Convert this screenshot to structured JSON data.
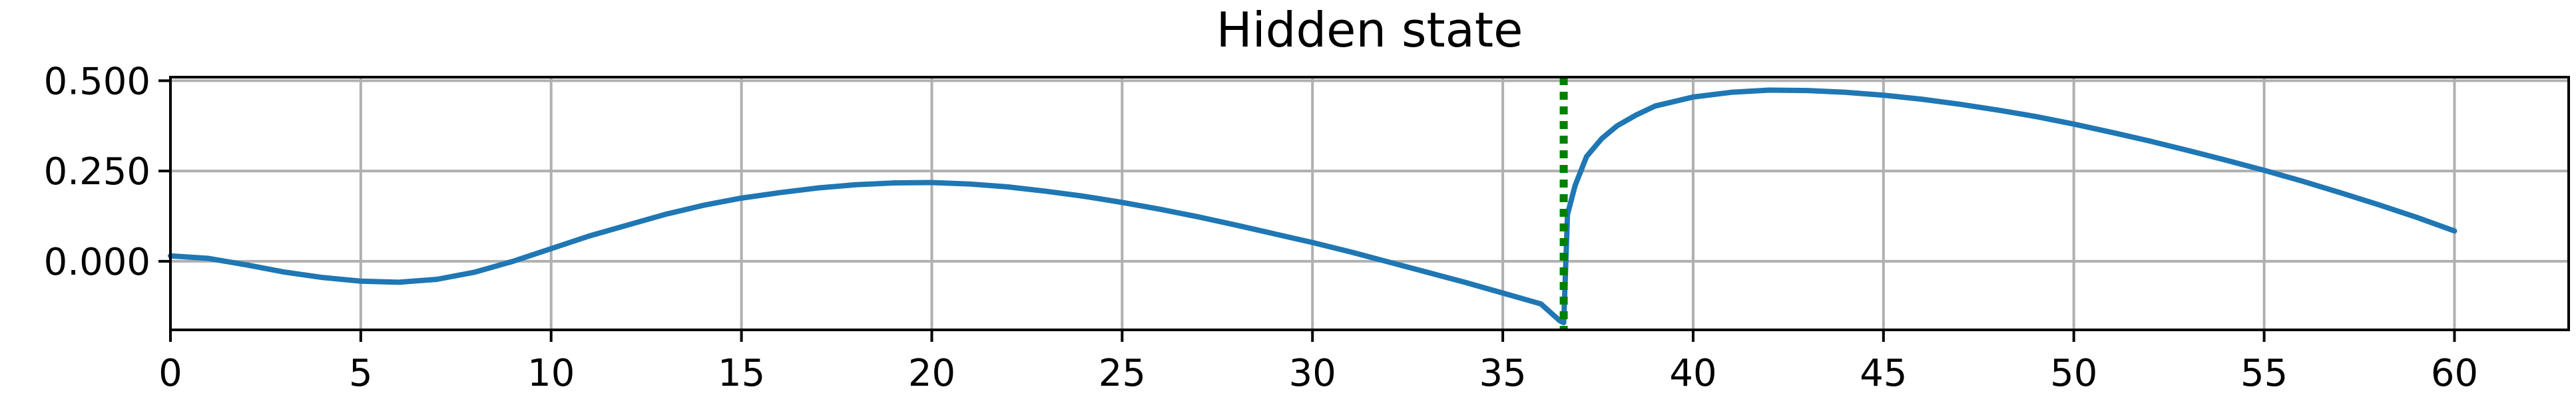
{
  "chart_data": {
    "type": "line",
    "title": "Hidden state",
    "xlabel": "",
    "ylabel": "",
    "xlim": [
      0,
      63
    ],
    "ylim": [
      -0.19,
      0.51
    ],
    "xticks": [
      0,
      5,
      10,
      15,
      20,
      25,
      30,
      35,
      40,
      45,
      50,
      55,
      60
    ],
    "xtick_labels": [
      "0",
      "5",
      "10",
      "15",
      "20",
      "25",
      "30",
      "35",
      "40",
      "45",
      "50",
      "55",
      "60"
    ],
    "yticks": [
      0.0,
      0.25,
      0.5
    ],
    "ytick_labels": [
      "0.000",
      "0.250",
      "0.500"
    ],
    "grid": true,
    "series": [
      {
        "color": "#1f77b4",
        "style": "solid",
        "x": [
          0,
          1,
          2,
          3,
          4,
          5,
          6,
          7,
          8,
          9,
          10,
          11,
          12,
          13,
          14,
          15,
          16,
          17,
          18,
          19,
          20,
          21,
          22,
          23,
          24,
          25,
          26,
          27,
          28,
          29,
          30,
          31,
          32,
          33,
          34,
          35,
          36,
          36.5,
          36.6,
          36.7,
          36.9,
          37.2,
          37.6,
          38,
          38.5,
          39,
          40,
          41,
          42,
          43,
          44,
          45,
          46,
          47,
          48,
          49,
          50,
          51,
          52,
          53,
          54,
          55,
          56,
          57,
          58,
          59,
          60
        ],
        "y": [
          0.015,
          0.008,
          -0.01,
          -0.03,
          -0.045,
          -0.055,
          -0.058,
          -0.05,
          -0.03,
          0.0,
          0.035,
          0.07,
          0.1,
          0.13,
          0.155,
          0.175,
          0.19,
          0.203,
          0.212,
          0.217,
          0.218,
          0.214,
          0.206,
          0.194,
          0.18,
          0.163,
          0.144,
          0.123,
          0.1,
          0.076,
          0.052,
          0.026,
          -0.002,
          -0.03,
          -0.058,
          -0.088,
          -0.118,
          -0.165,
          -0.17,
          0.13,
          0.21,
          0.29,
          0.34,
          0.375,
          0.405,
          0.43,
          0.455,
          0.468,
          0.474,
          0.473,
          0.468,
          0.46,
          0.449,
          0.435,
          0.419,
          0.401,
          0.38,
          0.357,
          0.333,
          0.307,
          0.28,
          0.252,
          0.222,
          0.19,
          0.157,
          0.122,
          0.084
        ]
      }
    ],
    "annotations": [
      {
        "type": "vline",
        "x": 36.6,
        "color": "#008000",
        "style": "dotted"
      }
    ]
  }
}
